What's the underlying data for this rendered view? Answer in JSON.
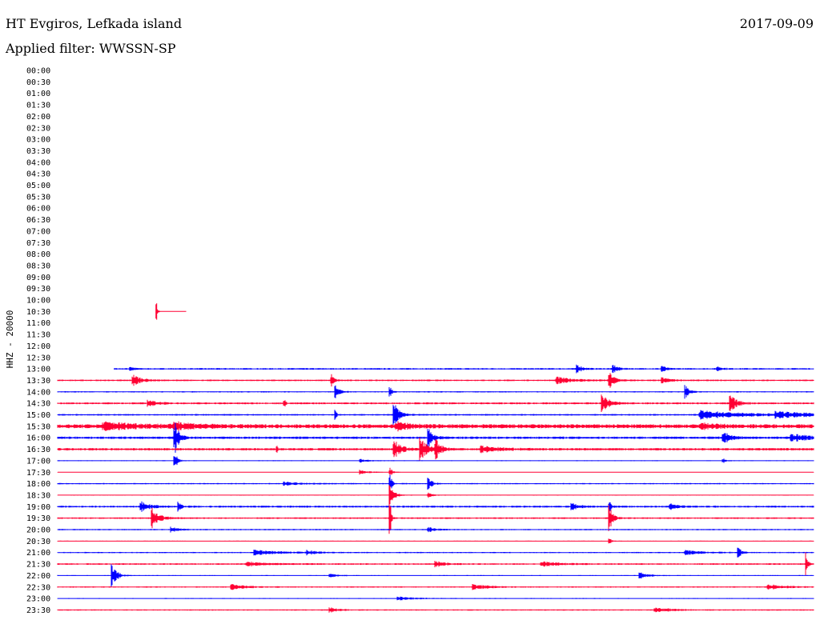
{
  "header": {
    "title": "HT Evgiros, Lefkada island",
    "date": "2017-09-09",
    "filter": "Applied filter: WWSSN-SP"
  },
  "chart_data": {
    "type": "line",
    "title": "HT Evgiros, Lefkada island",
    "subtitle": "Applied filter: WWSSN-SP",
    "ylabel": "HHZ - 20000",
    "rows": [
      "00:00",
      "00:30",
      "01:00",
      "01:30",
      "02:00",
      "02:30",
      "03:00",
      "03:30",
      "04:00",
      "04:30",
      "05:00",
      "05:30",
      "06:00",
      "06:30",
      "07:00",
      "07:30",
      "08:00",
      "08:30",
      "09:00",
      "09:30",
      "10:00",
      "10:30",
      "11:00",
      "11:30",
      "12:00",
      "12:30",
      "13:00",
      "13:30",
      "14:00",
      "14:30",
      "15:00",
      "15:30",
      "16:00",
      "16:30",
      "17:00",
      "17:30",
      "18:00",
      "18:30",
      "19:00",
      "19:30",
      "20:00",
      "20:30",
      "21:00",
      "21:30",
      "22:00",
      "22:30",
      "23:00",
      "23:30"
    ],
    "colors": [
      "#0000ff",
      "#ff0033"
    ],
    "grid": false,
    "legend": "none",
    "traces": [
      {
        "row": "10:30",
        "start": 0.13,
        "end": 0.17,
        "noise": 0.5,
        "events": [
          {
            "at": 0.13,
            "amp": 25,
            "width": 0.001
          }
        ]
      },
      {
        "row": "13:00",
        "start": 0.075,
        "end": 1.0,
        "noise": 1,
        "events": [
          {
            "at": 0.096,
            "amp": 3,
            "width": 0.004
          },
          {
            "at": 0.687,
            "amp": 6,
            "width": 0.006
          },
          {
            "at": 0.735,
            "amp": 5,
            "width": 0.006
          },
          {
            "at": 0.8,
            "amp": 4,
            "width": 0.004
          },
          {
            "at": 0.873,
            "amp": 3,
            "width": 0.006
          }
        ]
      },
      {
        "row": "13:30",
        "start": 0.0,
        "end": 1.0,
        "noise": 1,
        "events": [
          {
            "at": 0.1,
            "amp": 7,
            "width": 0.01
          },
          {
            "at": 0.362,
            "amp": 8,
            "width": 0.003
          },
          {
            "at": 0.66,
            "amp": 4,
            "width": 0.02
          },
          {
            "at": 0.73,
            "amp": 10,
            "width": 0.006
          },
          {
            "at": 0.8,
            "amp": 3,
            "width": 0.01
          }
        ]
      },
      {
        "row": "14:00",
        "start": 0.0,
        "end": 1.0,
        "noise": 0.8,
        "events": [
          {
            "at": 0.367,
            "amp": 14,
            "width": 0.004
          },
          {
            "at": 0.44,
            "amp": 7,
            "width": 0.002
          },
          {
            "at": 0.83,
            "amp": 10,
            "width": 0.004
          }
        ]
      },
      {
        "row": "14:30",
        "start": 0.0,
        "end": 1.0,
        "noise": 1.2,
        "events": [
          {
            "at": 0.12,
            "amp": 4,
            "width": 0.01
          },
          {
            "at": 0.3,
            "amp": 6,
            "width": 0.001
          },
          {
            "at": 0.72,
            "amp": 12,
            "width": 0.008
          },
          {
            "at": 0.89,
            "amp": 10,
            "width": 0.008
          }
        ]
      },
      {
        "row": "15:00",
        "start": 0.0,
        "end": 1.0,
        "noise": 1,
        "events": [
          {
            "at": 0.367,
            "amp": 8,
            "width": 0.002
          },
          {
            "at": 0.445,
            "amp": 16,
            "width": 0.006
          },
          {
            "at": 0.85,
            "amp": 5,
            "width": 0.05
          },
          {
            "at": 0.95,
            "amp": 4,
            "width": 0.04
          }
        ]
      },
      {
        "row": "15:30",
        "start": 0.0,
        "end": 1.0,
        "noise": 2.5,
        "events": [
          {
            "at": 0.06,
            "amp": 4,
            "width": 0.05
          },
          {
            "at": 0.155,
            "amp": 5,
            "width": 0.02
          },
          {
            "at": 0.448,
            "amp": 5,
            "width": 0.015
          },
          {
            "at": 0.85,
            "amp": 3,
            "width": 0.02
          }
        ]
      },
      {
        "row": "16:00",
        "start": 0.0,
        "end": 1.0,
        "noise": 1.5,
        "events": [
          {
            "at": 0.155,
            "amp": 20,
            "width": 0.005
          },
          {
            "at": 0.49,
            "amp": 12,
            "width": 0.006
          },
          {
            "at": 0.88,
            "amp": 9,
            "width": 0.008
          },
          {
            "at": 0.97,
            "amp": 5,
            "width": 0.02
          }
        ]
      },
      {
        "row": "16:30",
        "start": 0.0,
        "end": 1.0,
        "noise": 1.5,
        "events": [
          {
            "at": 0.29,
            "amp": 5,
            "width": 0.001
          },
          {
            "at": 0.445,
            "amp": 12,
            "width": 0.008
          },
          {
            "at": 0.48,
            "amp": 14,
            "width": 0.008
          },
          {
            "at": 0.5,
            "amp": 14,
            "width": 0.006
          },
          {
            "at": 0.56,
            "amp": 4,
            "width": 0.02
          }
        ]
      },
      {
        "row": "17:00",
        "start": 0.0,
        "end": 1.0,
        "noise": 0.6,
        "events": [
          {
            "at": 0.155,
            "amp": 12,
            "width": 0.003
          },
          {
            "at": 0.4,
            "amp": 2,
            "width": 0.01
          },
          {
            "at": 0.88,
            "amp": 3,
            "width": 0.004
          }
        ]
      },
      {
        "row": "17:30",
        "start": 0.0,
        "end": 1.0,
        "noise": 0.6,
        "events": [
          {
            "at": 0.4,
            "amp": 3,
            "width": 0.008
          },
          {
            "at": 0.44,
            "amp": 5,
            "width": 0.003
          }
        ]
      },
      {
        "row": "18:00",
        "start": 0.0,
        "end": 1.0,
        "noise": 0.8,
        "events": [
          {
            "at": 0.3,
            "amp": 2,
            "width": 0.02
          },
          {
            "at": 0.44,
            "amp": 14,
            "width": 0.002
          },
          {
            "at": 0.49,
            "amp": 10,
            "width": 0.004
          }
        ]
      },
      {
        "row": "18:30",
        "start": 0.0,
        "end": 1.0,
        "noise": 0.6,
        "events": [
          {
            "at": 0.44,
            "amp": 20,
            "width": 0.004
          },
          {
            "at": 0.49,
            "amp": 4,
            "width": 0.004
          }
        ]
      },
      {
        "row": "19:00",
        "start": 0.0,
        "end": 1.0,
        "noise": 1.2,
        "events": [
          {
            "at": 0.11,
            "amp": 6,
            "width": 0.01
          },
          {
            "at": 0.16,
            "amp": 5,
            "width": 0.004
          },
          {
            "at": 0.68,
            "amp": 4,
            "width": 0.008
          },
          {
            "at": 0.73,
            "amp": 6,
            "width": 0.003
          },
          {
            "at": 0.81,
            "amp": 4,
            "width": 0.008
          }
        ]
      },
      {
        "row": "19:30",
        "start": 0.0,
        "end": 1.0,
        "noise": 1,
        "events": [
          {
            "at": 0.125,
            "amp": 14,
            "width": 0.008
          },
          {
            "at": 0.44,
            "amp": 25,
            "width": 0.001
          },
          {
            "at": 0.73,
            "amp": 16,
            "width": 0.004
          }
        ]
      },
      {
        "row": "20:00",
        "start": 0.0,
        "end": 1.0,
        "noise": 0.8,
        "events": [
          {
            "at": 0.15,
            "amp": 3,
            "width": 0.01
          },
          {
            "at": 0.49,
            "amp": 3,
            "width": 0.01
          }
        ]
      },
      {
        "row": "20:30",
        "start": 0.0,
        "end": 1.0,
        "noise": 0.6,
        "events": [
          {
            "at": 0.73,
            "amp": 6,
            "width": 0.002
          }
        ]
      },
      {
        "row": "21:00",
        "start": 0.0,
        "end": 1.0,
        "noise": 0.8,
        "events": [
          {
            "at": 0.26,
            "amp": 3,
            "width": 0.03
          },
          {
            "at": 0.33,
            "amp": 3,
            "width": 0.01
          },
          {
            "at": 0.83,
            "amp": 3,
            "width": 0.02
          },
          {
            "at": 0.9,
            "amp": 9,
            "width": 0.004
          }
        ]
      },
      {
        "row": "21:30",
        "start": 0.0,
        "end": 1.0,
        "noise": 1,
        "events": [
          {
            "at": 0.25,
            "amp": 3,
            "width": 0.02
          },
          {
            "at": 0.5,
            "amp": 4,
            "width": 0.01
          },
          {
            "at": 0.64,
            "amp": 3,
            "width": 0.02
          },
          {
            "at": 0.99,
            "amp": 14,
            "width": 0.002
          }
        ]
      },
      {
        "row": "22:00",
        "start": 0.0,
        "end": 1.0,
        "noise": 0.6,
        "events": [
          {
            "at": 0.072,
            "amp": 14,
            "width": 0.006
          },
          {
            "at": 0.36,
            "amp": 2,
            "width": 0.01
          },
          {
            "at": 0.77,
            "amp": 4,
            "width": 0.01
          }
        ]
      },
      {
        "row": "22:30",
        "start": 0.0,
        "end": 1.0,
        "noise": 0.8,
        "events": [
          {
            "at": 0.23,
            "amp": 3,
            "width": 0.02
          },
          {
            "at": 0.55,
            "amp": 3,
            "width": 0.02
          },
          {
            "at": 0.94,
            "amp": 3,
            "width": 0.02
          }
        ]
      },
      {
        "row": "23:00",
        "start": 0.0,
        "end": 1.0,
        "noise": 0.6,
        "events": [
          {
            "at": 0.45,
            "amp": 2,
            "width": 0.02
          }
        ]
      },
      {
        "row": "23:30",
        "start": 0.0,
        "end": 1.0,
        "noise": 0.8,
        "events": [
          {
            "at": 0.36,
            "amp": 3,
            "width": 0.01
          },
          {
            "at": 0.79,
            "amp": 3,
            "width": 0.02
          }
        ]
      }
    ]
  }
}
